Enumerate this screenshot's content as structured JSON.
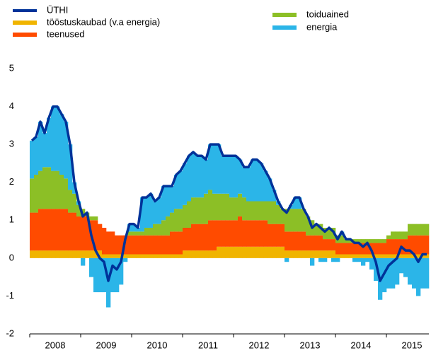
{
  "chart_data": {
    "type": "bar",
    "stacked": true,
    "categories": [
      null,
      null,
      null,
      null,
      null,
      "2008",
      null,
      null,
      null,
      null,
      null,
      null,
      null,
      null,
      null,
      null,
      null,
      "2009",
      null,
      null,
      null,
      null,
      null,
      null,
      null,
      null,
      null,
      null,
      null,
      "2010",
      null,
      null,
      null,
      null,
      null,
      null,
      null,
      null,
      null,
      null,
      null,
      "2011",
      null,
      null,
      null,
      null,
      null,
      null,
      null,
      null,
      null,
      null,
      null,
      "2012",
      null,
      null,
      null,
      null,
      null,
      null,
      null,
      null,
      null,
      null,
      null,
      "2013",
      null,
      null,
      null,
      null,
      null,
      null,
      null,
      null,
      null,
      null,
      null,
      "2014",
      null,
      null,
      null,
      null,
      null,
      null,
      null,
      null,
      null,
      null,
      null,
      "2015",
      null,
      null,
      null,
      null
    ],
    "ylim": [
      -2,
      5
    ],
    "yticks": [
      -2,
      -1,
      0,
      1,
      2,
      3,
      4,
      5
    ],
    "grid": false,
    "series": [
      {
        "name": "ÜTHI",
        "type": "line",
        "color": "#003299",
        "values": [
          3.1,
          3.2,
          3.6,
          3.3,
          3.7,
          4.0,
          4.0,
          3.8,
          3.6,
          3.0,
          2.0,
          1.5,
          1.1,
          1.2,
          0.6,
          0.2,
          0.0,
          -0.1,
          -0.6,
          -0.2,
          -0.3,
          -0.1,
          0.5,
          0.9,
          0.9,
          0.8,
          1.6,
          1.6,
          1.7,
          1.5,
          1.6,
          1.9,
          1.9,
          1.9,
          2.2,
          2.3,
          2.5,
          2.7,
          2.8,
          2.7,
          2.7,
          2.6,
          3.0,
          3.0,
          3.0,
          2.7,
          2.7,
          2.7,
          2.7,
          2.6,
          2.4,
          2.4,
          2.6,
          2.6,
          2.5,
          2.3,
          2.1,
          1.8,
          1.5,
          1.3,
          1.2,
          1.4,
          1.6,
          1.6,
          1.3,
          1.1,
          0.8,
          0.9,
          0.8,
          0.7,
          0.8,
          0.7,
          0.5,
          0.7,
          0.5,
          0.5,
          0.4,
          0.4,
          0.3,
          0.4,
          0.2,
          -0.1,
          -0.6,
          -0.4,
          -0.2,
          -0.1,
          0.0,
          0.3,
          0.2,
          0.2,
          0.1,
          -0.1,
          0.1,
          0.1
        ]
      },
      {
        "name": "tööstuskaubad (v.a energia)",
        "color": "#f0b400",
        "values": [
          0.2,
          0.2,
          0.2,
          0.2,
          0.2,
          0.2,
          0.2,
          0.2,
          0.2,
          0.2,
          0.2,
          0.2,
          0.2,
          0.2,
          0.2,
          0.2,
          0.2,
          0.1,
          0.1,
          0.1,
          0.1,
          0.1,
          0.1,
          0.1,
          0.1,
          0.1,
          0.1,
          0.1,
          0.1,
          0.1,
          0.1,
          0.1,
          0.1,
          0.1,
          0.1,
          0.1,
          0.2,
          0.2,
          0.2,
          0.2,
          0.2,
          0.2,
          0.2,
          0.2,
          0.3,
          0.3,
          0.3,
          0.3,
          0.3,
          0.3,
          0.3,
          0.3,
          0.3,
          0.3,
          0.3,
          0.3,
          0.3,
          0.3,
          0.3,
          0.3,
          0.2,
          0.2,
          0.2,
          0.2,
          0.2,
          0.2,
          0.2,
          0.2,
          0.2,
          0.2,
          0.2,
          0.2,
          0.1,
          0.1,
          0.1,
          0.1,
          0.1,
          0.1,
          0.1,
          0.1,
          0.1,
          0.1,
          0.1,
          0.1,
          0.1,
          0.1,
          0.1,
          0.1,
          0.1,
          0.1,
          0.1,
          0.1,
          0.1,
          0.1
        ]
      },
      {
        "name": "teenused",
        "color": "#ff4b00",
        "values": [
          1.0,
          1.0,
          1.1,
          1.1,
          1.1,
          1.1,
          1.1,
          1.1,
          1.1,
          1.0,
          1.0,
          0.9,
          0.9,
          0.9,
          0.8,
          0.8,
          0.7,
          0.7,
          0.6,
          0.6,
          0.5,
          0.5,
          0.5,
          0.5,
          0.5,
          0.5,
          0.5,
          0.5,
          0.5,
          0.5,
          0.5,
          0.5,
          0.5,
          0.6,
          0.6,
          0.6,
          0.6,
          0.6,
          0.7,
          0.7,
          0.7,
          0.7,
          0.8,
          0.8,
          0.7,
          0.7,
          0.7,
          0.7,
          0.7,
          0.8,
          0.7,
          0.7,
          0.7,
          0.7,
          0.7,
          0.7,
          0.6,
          0.6,
          0.6,
          0.6,
          0.5,
          0.5,
          0.5,
          0.5,
          0.5,
          0.4,
          0.4,
          0.4,
          0.4,
          0.3,
          0.3,
          0.3,
          0.3,
          0.3,
          0.3,
          0.3,
          0.3,
          0.3,
          0.3,
          0.3,
          0.3,
          0.3,
          0.3,
          0.3,
          0.4,
          0.4,
          0.4,
          0.4,
          0.4,
          0.5,
          0.5,
          0.5,
          0.5,
          0.5
        ]
      },
      {
        "name": "toiduained",
        "color": "#8cbf26",
        "values": [
          0.9,
          1.0,
          1.0,
          1.1,
          1.1,
          1.0,
          1.0,
          0.9,
          0.8,
          0.6,
          0.5,
          0.3,
          0.2,
          0.1,
          0.1,
          0.1,
          0.0,
          0.0,
          0.0,
          0.0,
          0.0,
          0.0,
          0.0,
          0.1,
          0.1,
          0.1,
          0.1,
          0.2,
          0.2,
          0.3,
          0.3,
          0.4,
          0.5,
          0.5,
          0.6,
          0.6,
          0.6,
          0.7,
          0.7,
          0.7,
          0.7,
          0.8,
          0.8,
          0.7,
          0.7,
          0.7,
          0.7,
          0.6,
          0.6,
          0.6,
          0.6,
          0.5,
          0.5,
          0.5,
          0.5,
          0.5,
          0.6,
          0.6,
          0.5,
          0.4,
          0.6,
          0.6,
          0.6,
          0.6,
          0.6,
          0.5,
          0.4,
          0.3,
          0.3,
          0.3,
          0.3,
          0.3,
          0.2,
          0.2,
          0.1,
          0.1,
          0.1,
          0.1,
          0.1,
          0.1,
          0.1,
          0.1,
          0.1,
          0.1,
          0.1,
          0.2,
          0.2,
          0.2,
          0.2,
          0.3,
          0.3,
          0.3,
          0.3,
          0.3
        ]
      },
      {
        "name": "energia",
        "color": "#2bb5e8",
        "values": [
          1.0,
          1.0,
          1.3,
          0.9,
          1.3,
          1.7,
          1.7,
          1.6,
          1.5,
          1.2,
          0.3,
          0.1,
          -0.2,
          0.0,
          -0.5,
          -0.9,
          -0.9,
          -0.9,
          -1.3,
          -0.9,
          -0.9,
          -0.7,
          -0.1,
          0.2,
          0.2,
          0.1,
          0.9,
          0.8,
          0.9,
          0.6,
          0.7,
          0.9,
          0.8,
          0.7,
          0.9,
          1.0,
          1.1,
          1.2,
          1.2,
          1.1,
          1.1,
          0.9,
          1.2,
          1.3,
          1.3,
          1.0,
          1.0,
          1.1,
          1.1,
          0.9,
          0.8,
          0.9,
          1.1,
          1.1,
          1.0,
          0.8,
          0.6,
          0.3,
          0.1,
          0.0,
          -0.1,
          0.1,
          0.3,
          0.3,
          0.0,
          0.0,
          -0.2,
          0.0,
          -0.1,
          -0.1,
          0.0,
          -0.1,
          -0.1,
          0.1,
          0.0,
          0.0,
          -0.1,
          -0.1,
          -0.2,
          -0.1,
          -0.3,
          -0.6,
          -1.1,
          -0.9,
          -0.8,
          -0.8,
          -0.7,
          -0.4,
          -0.5,
          -0.7,
          -0.8,
          -1.0,
          -0.8,
          -0.8
        ]
      }
    ]
  }
}
